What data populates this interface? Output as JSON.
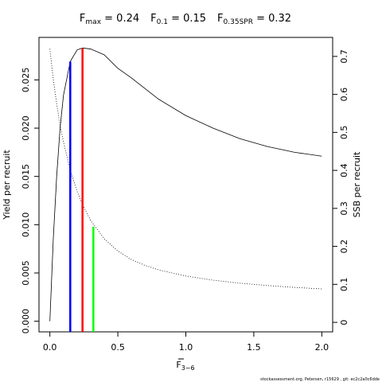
{
  "chart_data": {
    "type": "line",
    "title": [
      {
        "main": "F",
        "sub": "max",
        "text": " = 0.24"
      },
      {
        "main": "F",
        "sub": "0.1",
        "text": " = 0.15"
      },
      {
        "main": "F",
        "sub": "0.35SPR",
        "text": " = 0.32"
      }
    ],
    "xlabel": {
      "main": "F",
      "sub": "3−6"
    },
    "ylabel": "Yield per recruit",
    "y2label": "SSB per recruit",
    "footer": "stockassessment.org, Petersen, r15629 , git: ec2c2a0c6dde",
    "x": [
      0,
      0.025,
      0.05,
      0.075,
      0.1,
      0.15,
      0.2,
      0.24,
      0.3,
      0.4,
      0.5,
      0.6,
      0.7,
      0.8,
      1.0,
      1.2,
      1.4,
      1.6,
      1.8,
      2.0
    ],
    "series": [
      {
        "color": "#000000",
        "dash": "solid",
        "values": [
          0,
          0.0085,
          0.015,
          0.02,
          0.0234,
          0.0269,
          0.0281,
          0.0283,
          0.0282,
          0.0276,
          0.0262,
          0.0252,
          0.0241,
          0.023,
          0.0213,
          0.02,
          0.0189,
          0.0181,
          0.0175,
          0.0171
        ]
      },
      {
        "color": "#000000",
        "dash": "dotted",
        "axis": "y2",
        "values": [
          0.72,
          0.64,
          0.575,
          0.52,
          0.475,
          0.4,
          0.345,
          0.31,
          0.268,
          0.22,
          0.188,
          0.165,
          0.15,
          0.138,
          0.122,
          0.111,
          0.103,
          0.097,
          0.092,
          0.088
        ]
      }
    ],
    "reference_lines": [
      {
        "x": 0.15,
        "y": 0.0269,
        "color": "#0000ff"
      },
      {
        "x": 0.24,
        "y": 0.0283,
        "color": "#ff0000"
      },
      {
        "x": 0.32,
        "y": 0.2516,
        "axis": "y2",
        "color": "#00ff00"
      }
    ],
    "xlim": [
      -0.08,
      2.08
    ],
    "ylim": [
      -0.0011,
      0.0294
    ],
    "y2lim": [
      -0.025,
      0.75
    ],
    "xticks": [
      {
        "value": 0,
        "label": "0.0"
      },
      {
        "value": 0.5,
        "label": "0.5"
      },
      {
        "value": 1,
        "label": "1.0"
      },
      {
        "value": 1.5,
        "label": "1.5"
      },
      {
        "value": 2,
        "label": "2.0"
      }
    ],
    "yticks": [
      {
        "value": 0,
        "label": "0.000"
      },
      {
        "value": 0.005,
        "label": "0.005"
      },
      {
        "value": 0.01,
        "label": "0.010"
      },
      {
        "value": 0.015,
        "label": "0.015"
      },
      {
        "value": 0.02,
        "label": "0.020"
      },
      {
        "value": 0.025,
        "label": "0.025"
      }
    ],
    "y2ticks": [
      0,
      0.1,
      0.2,
      0.3,
      0.4,
      0.5,
      0.6,
      0.7
    ]
  }
}
